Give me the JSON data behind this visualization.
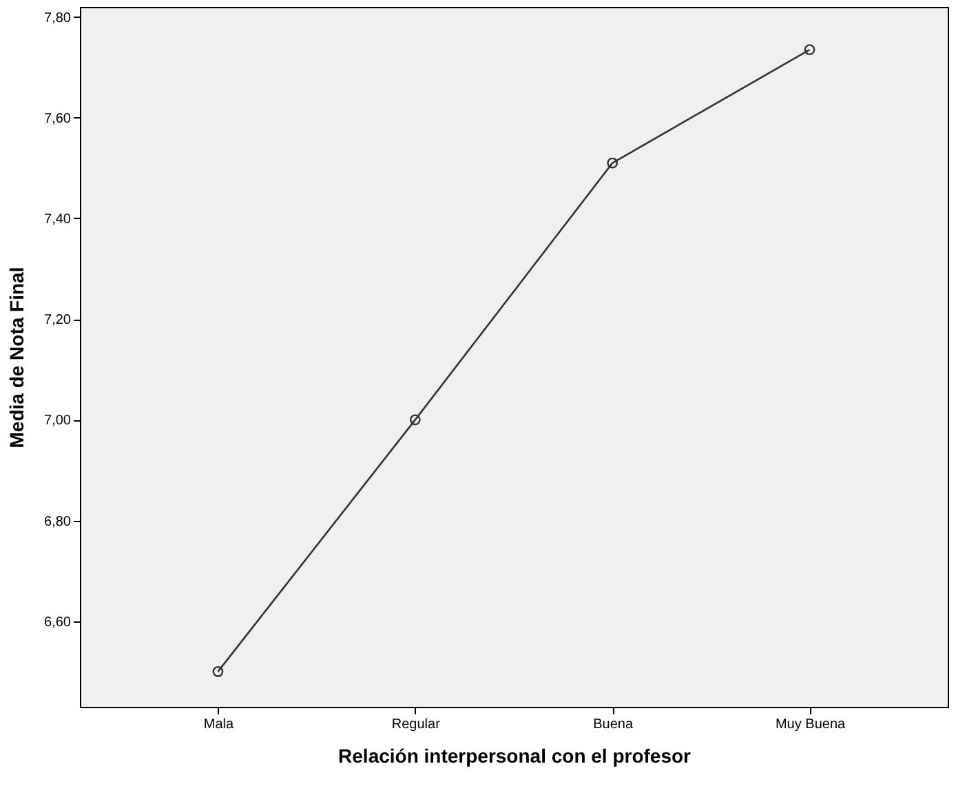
{
  "chart_data": {
    "type": "line",
    "xlabel": "Relación interpersonal con el profesor",
    "ylabel": "Media de Nota Final",
    "categories": [
      "Mala",
      "Regular",
      "Buena",
      "Muy Buena"
    ],
    "series": [
      {
        "color": "#333333",
        "values": [
          6.5,
          7.0,
          7.51,
          7.735
        ]
      }
    ],
    "ylim": [
      6.43,
      7.82
    ],
    "yticks": [
      {
        "value": 6.6,
        "label": "6,60"
      },
      {
        "value": 6.8,
        "label": "6,80"
      },
      {
        "value": 7.0,
        "label": "7,00"
      },
      {
        "value": 7.2,
        "label": "7,20"
      },
      {
        "value": 7.4,
        "label": "7,40"
      },
      {
        "value": 7.6,
        "label": "7,60"
      },
      {
        "value": 7.8,
        "label": "7,80"
      }
    ],
    "grid": false,
    "marker": "circle",
    "line_style": "solid"
  }
}
